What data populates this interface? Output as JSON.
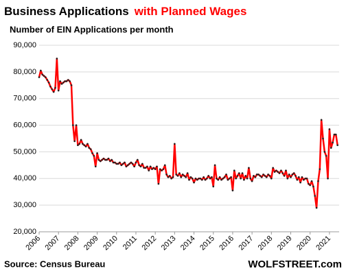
{
  "chart_data": {
    "type": "line",
    "title": "Business Applications",
    "title_highlight": "with Planned Wages",
    "subtitle": "Number of EIN Applications per month",
    "source": "Source: Census Bureau",
    "brand": "WOLFSTREET.com",
    "color": "#ff0000",
    "marker_color": "#222222",
    "grid": true,
    "xlim": [
      2006,
      2021.5
    ],
    "xticks": [
      2006,
      2007,
      2008,
      2009,
      2010,
      2011,
      2012,
      2013,
      2014,
      2015,
      2016,
      2017,
      2018,
      2019,
      2020,
      2021
    ],
    "ylim": [
      20000,
      90000
    ],
    "yticks": [
      {
        "value": 20000,
        "label": "20,000"
      },
      {
        "value": 30000,
        "label": "30,000"
      },
      {
        "value": 40000,
        "label": "40,000"
      },
      {
        "value": 50000,
        "label": "50,000"
      },
      {
        "value": 60000,
        "label": "60,000"
      },
      {
        "value": 70000,
        "label": "70,000"
      },
      {
        "value": 80000,
        "label": "80,000"
      },
      {
        "value": 90000,
        "label": "90,000"
      }
    ],
    "x": [
      2006,
      2006.083,
      2006.167,
      2006.25,
      2006.333,
      2006.417,
      2006.5,
      2006.583,
      2006.667,
      2006.75,
      2006.833,
      2006.917,
      2007,
      2007.083,
      2007.167,
      2007.25,
      2007.333,
      2007.417,
      2007.5,
      2007.583,
      2007.667,
      2007.75,
      2007.833,
      2007.917,
      2008,
      2008.083,
      2008.167,
      2008.25,
      2008.333,
      2008.417,
      2008.5,
      2008.583,
      2008.667,
      2008.75,
      2008.833,
      2008.917,
      2009,
      2009.083,
      2009.167,
      2009.25,
      2009.333,
      2009.417,
      2009.5,
      2009.583,
      2009.667,
      2009.75,
      2009.833,
      2009.917,
      2010,
      2010.083,
      2010.167,
      2010.25,
      2010.333,
      2010.417,
      2010.5,
      2010.583,
      2010.667,
      2010.75,
      2010.833,
      2010.917,
      2011,
      2011.083,
      2011.167,
      2011.25,
      2011.333,
      2011.417,
      2011.5,
      2011.583,
      2011.667,
      2011.75,
      2011.833,
      2011.917,
      2012,
      2012.083,
      2012.167,
      2012.25,
      2012.333,
      2012.417,
      2012.5,
      2012.583,
      2012.667,
      2012.75,
      2012.833,
      2012.917,
      2013,
      2013.083,
      2013.167,
      2013.25,
      2013.333,
      2013.417,
      2013.5,
      2013.583,
      2013.667,
      2013.75,
      2013.833,
      2013.917,
      2014,
      2014.083,
      2014.167,
      2014.25,
      2014.333,
      2014.417,
      2014.5,
      2014.583,
      2014.667,
      2014.75,
      2014.833,
      2014.917,
      2015,
      2015.083,
      2015.167,
      2015.25,
      2015.333,
      2015.417,
      2015.5,
      2015.583,
      2015.667,
      2015.75,
      2015.833,
      2015.917,
      2016,
      2016.083,
      2016.167,
      2016.25,
      2016.333,
      2016.417,
      2016.5,
      2016.583,
      2016.667,
      2016.75,
      2016.833,
      2016.917,
      2017,
      2017.083,
      2017.167,
      2017.25,
      2017.333,
      2017.417,
      2017.5,
      2017.583,
      2017.667,
      2017.75,
      2017.833,
      2017.917,
      2018,
      2018.083,
      2018.167,
      2018.25,
      2018.333,
      2018.417,
      2018.5,
      2018.583,
      2018.667,
      2018.75,
      2018.833,
      2018.917,
      2019,
      2019.083,
      2019.167,
      2019.25,
      2019.333,
      2019.417,
      2019.5,
      2019.583,
      2019.667,
      2019.75,
      2019.833,
      2019.917,
      2020,
      2020.083,
      2020.167,
      2020.25,
      2020.333,
      2020.417,
      2020.5,
      2020.583,
      2020.667,
      2020.75,
      2020.833,
      2020.917,
      2021,
      2021.083,
      2021.167,
      2021.25,
      2021.333,
      2021.417
    ],
    "values": [
      78000,
      80500,
      79000,
      78500,
      78000,
      77000,
      76000,
      74500,
      73500,
      72500,
      74000,
      85000,
      73000,
      76500,
      75500,
      76000,
      76500,
      76500,
      77000,
      76500,
      75000,
      60000,
      54000,
      60000,
      52500,
      53000,
      54500,
      53000,
      52500,
      52000,
      53000,
      51500,
      51000,
      49500,
      48500,
      44500,
      49500,
      47000,
      46500,
      47000,
      47500,
      47000,
      47000,
      47500,
      46500,
      47000,
      46000,
      46000,
      45500,
      45500,
      46000,
      45000,
      45500,
      46000,
      44500,
      45000,
      45500,
      46000,
      45500,
      44500,
      46000,
      47000,
      45000,
      44500,
      45500,
      44000,
      44000,
      44500,
      43000,
      44500,
      43500,
      44000,
      43500,
      44500,
      38000,
      43500,
      43000,
      43500,
      45000,
      41500,
      40500,
      41000,
      40000,
      40500,
      53000,
      41500,
      41000,
      42000,
      40500,
      41500,
      41000,
      40500,
      42000,
      39500,
      40500,
      40000,
      38500,
      40000,
      39500,
      40000,
      40000,
      39500,
      40500,
      39500,
      40000,
      41000,
      40000,
      40500,
      37000,
      45000,
      40000,
      39500,
      40500,
      39500,
      40000,
      40500,
      41500,
      39500,
      40000,
      40500,
      35500,
      43000,
      40000,
      41000,
      42000,
      40000,
      42000,
      39500,
      41000,
      40000,
      44000,
      40000,
      39000,
      41000,
      40500,
      41500,
      41500,
      41000,
      40500,
      41500,
      41000,
      40500,
      41500,
      41000,
      40000,
      44000,
      42500,
      43000,
      42500,
      42000,
      43000,
      42000,
      41000,
      43000,
      40000,
      41500,
      40500,
      41500,
      42000,
      41000,
      39500,
      40500,
      38500,
      40500,
      39500,
      40000,
      40000,
      38000,
      37500,
      39000,
      37000,
      33500,
      29000,
      39000,
      43500,
      62000,
      55000,
      50000,
      48500,
      40000,
      58500,
      51500,
      53500,
      56500,
      56500,
      52500
    ]
  }
}
